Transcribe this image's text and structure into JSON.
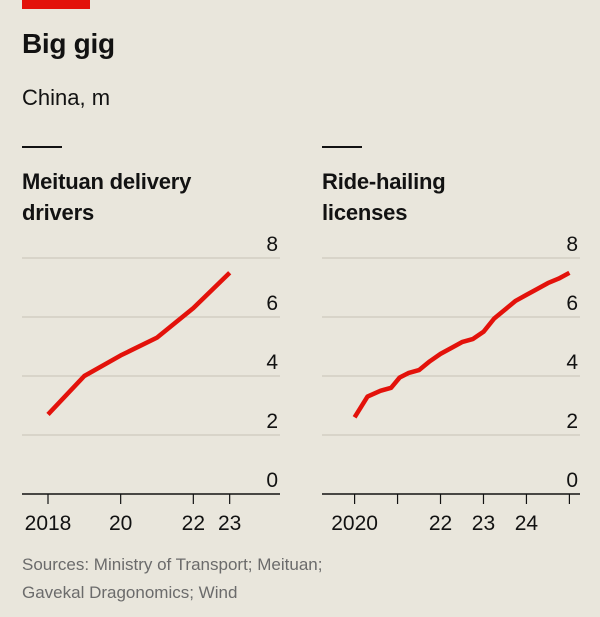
{
  "header": {
    "title": "Big gig",
    "subtitle": "China, m"
  },
  "footer": {
    "sources_line1": "Sources: Ministry of Transport; Meituan;",
    "sources_line2": "Gavekal Dragonomics; Wind"
  },
  "colors": {
    "line": "#e3120b",
    "accent": "#e3120b",
    "grid": "#c7c2b6",
    "background": "#e9e6dc"
  },
  "chart_data": [
    {
      "type": "line",
      "title": "Meituan delivery drivers",
      "title_lines": [
        "Meituan delivery",
        "drivers"
      ],
      "xlabel": "",
      "ylabel": "",
      "xlim": [
        2018,
        2024
      ],
      "ylim": [
        0,
        8
      ],
      "yticks": [
        0,
        2,
        4,
        6,
        8
      ],
      "xticks": [
        {
          "value": 2018,
          "label": "2018"
        },
        {
          "value": 2020,
          "label": "20"
        },
        {
          "value": 2022,
          "label": "22"
        },
        {
          "value": 2023,
          "label": "23"
        }
      ],
      "grid": true,
      "series": [
        {
          "x": [
            2018.0,
            2019.0,
            2020.0,
            2021.0,
            2022.0,
            2023.0
          ],
          "y": [
            2.7,
            4.0,
            4.7,
            5.3,
            6.3,
            7.5
          ]
        }
      ]
    },
    {
      "type": "line",
      "title": "Ride-hailing licenses",
      "title_lines": [
        "Ride-hailing",
        "licenses"
      ],
      "xlabel": "",
      "ylabel": "",
      "xlim": [
        2019.8,
        2025.2
      ],
      "ylim": [
        0,
        8
      ],
      "yticks": [
        0,
        2,
        4,
        6,
        8
      ],
      "xticks": [
        {
          "value": 2020,
          "label": "2020"
        },
        {
          "value": 2022,
          "label": "22"
        },
        {
          "value": 2023,
          "label": "23"
        },
        {
          "value": 2024,
          "label": "24"
        }
      ],
      "minor_xticks": [
        2021,
        2025
      ],
      "grid": true,
      "series": [
        {
          "x": [
            2020.0,
            2020.3,
            2020.6,
            2020.85,
            2021.05,
            2021.25,
            2021.5,
            2021.75,
            2022.0,
            2022.25,
            2022.5,
            2022.75,
            2023.0,
            2023.25,
            2023.5,
            2023.75,
            2024.0,
            2024.25,
            2024.5,
            2024.75,
            2025.0
          ],
          "y": [
            2.6,
            3.3,
            3.5,
            3.6,
            3.95,
            4.1,
            4.2,
            4.5,
            4.75,
            4.95,
            5.15,
            5.25,
            5.5,
            5.95,
            6.25,
            6.55,
            6.75,
            6.95,
            7.15,
            7.3,
            7.5
          ]
        }
      ]
    }
  ]
}
